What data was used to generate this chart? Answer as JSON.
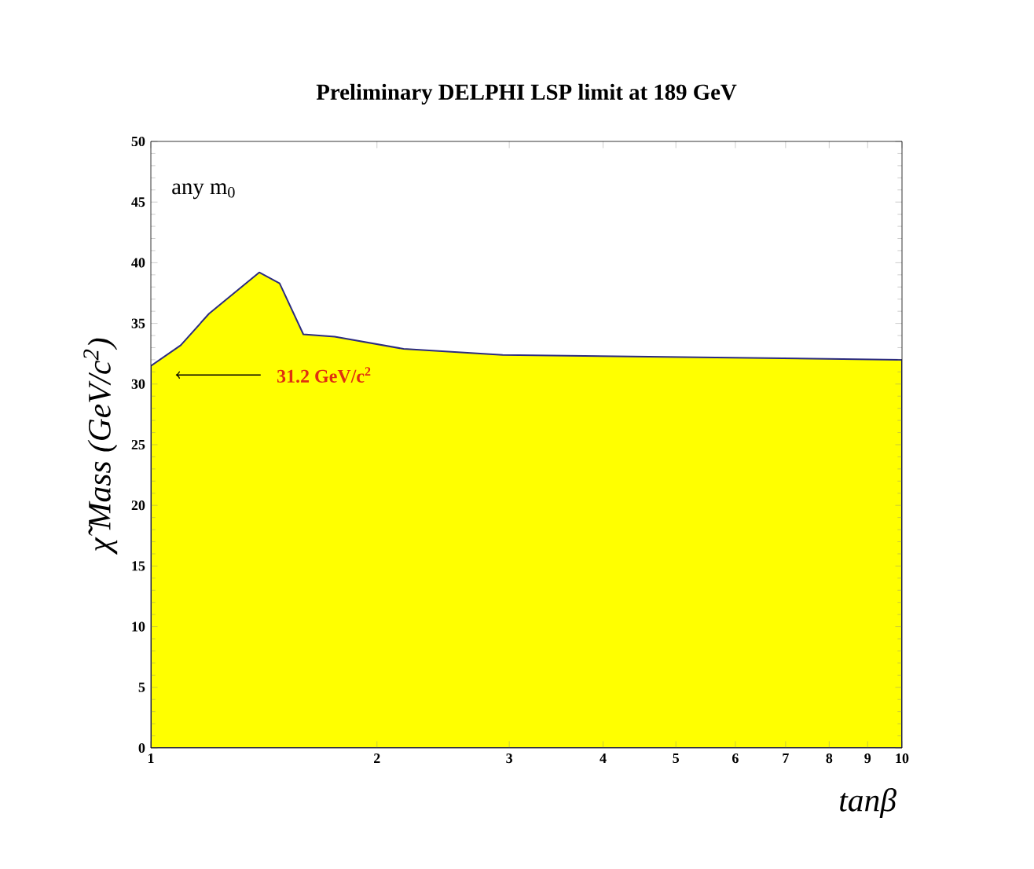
{
  "chart_data": {
    "type": "area",
    "title": "Preliminary DELPHI LSP limit at 189 GeV",
    "xlabel": "tanβ",
    "ylabel": "χ̃ Mass (GeV/c$^{2}$)",
    "x": [
      1,
      1.096,
      1.195,
      1.394,
      1.484,
      1.596,
      1.757,
      2.17,
      2.94,
      10
    ],
    "values": [
      31.5,
      33.2,
      35.8,
      39.2,
      38.3,
      34.1,
      33.9,
      32.9,
      32.4,
      32.0
    ],
    "color": "#ffff00",
    "log": "x",
    "xlim": [
      1,
      10
    ],
    "ylim": [
      0,
      50
    ],
    "xticks": [
      1,
      2,
      3,
      4,
      5,
      6,
      7,
      8,
      9,
      10
    ],
    "yticks": [
      0,
      5,
      10,
      15,
      20,
      25,
      30,
      35,
      40,
      45,
      50
    ],
    "annotations": [
      "any m$_{0}$",
      "31.2 GeV/c$^{2}$"
    ]
  }
}
